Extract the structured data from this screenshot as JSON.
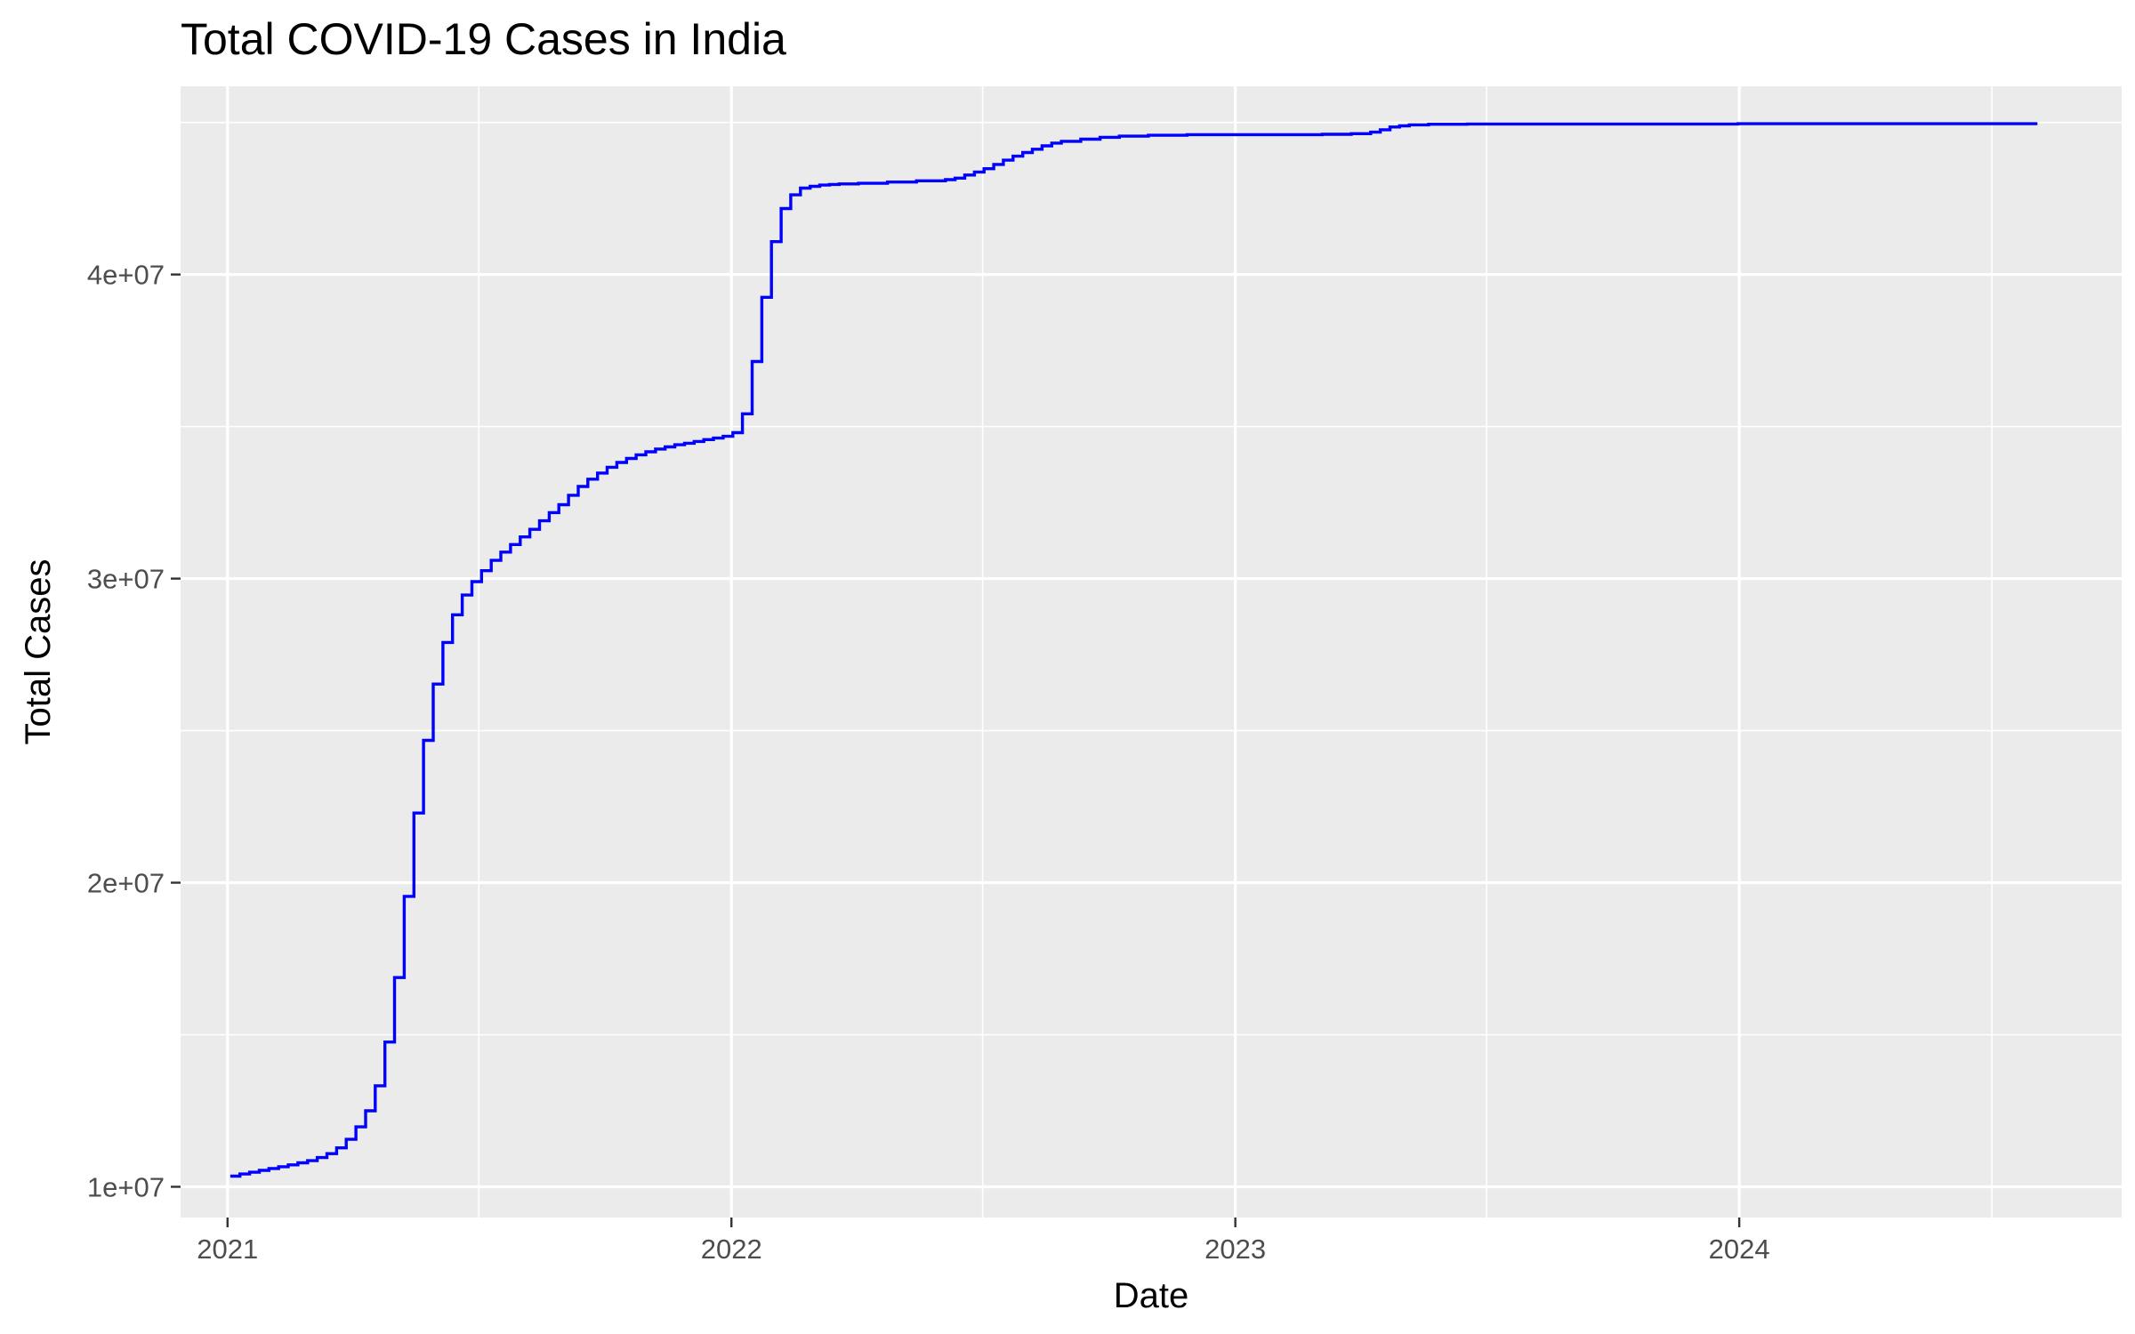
{
  "chart_data": {
    "type": "line",
    "title": "Total COVID-19 Cases in India",
    "xlabel": "Date",
    "ylabel": "Total Cases",
    "xlim": [
      "2020-11-28",
      "2024-10-04"
    ],
    "ylim": [
      8990000,
      46190000
    ],
    "x_ticks": [
      {
        "date": "2021-01-01",
        "label": "2021"
      },
      {
        "date": "2022-01-01",
        "label": "2022"
      },
      {
        "date": "2023-01-01",
        "label": "2023"
      },
      {
        "date": "2024-01-01",
        "label": "2024"
      }
    ],
    "x_minor_ticks": [
      "2021-07-02",
      "2022-07-02",
      "2023-07-02",
      "2024-07-02"
    ],
    "y_ticks": [
      {
        "value": 10000000,
        "label": "1e+07"
      },
      {
        "value": 20000000,
        "label": "2e+07"
      },
      {
        "value": 30000000,
        "label": "3e+07"
      },
      {
        "value": 40000000,
        "label": "4e+07"
      }
    ],
    "y_minor_ticks": [
      15000000,
      25000000,
      35000000,
      45000000
    ],
    "grid": true,
    "panel_background": "#ebebeb",
    "series": [
      {
        "name": "",
        "color": "#0000ff",
        "step": true,
        "x": [
          "2021-01-03",
          "2021-01-10",
          "2021-01-17",
          "2021-01-24",
          "2021-01-31",
          "2021-02-07",
          "2021-02-14",
          "2021-02-21",
          "2021-02-28",
          "2021-03-07",
          "2021-03-14",
          "2021-03-21",
          "2021-03-28",
          "2021-04-04",
          "2021-04-11",
          "2021-04-18",
          "2021-04-25",
          "2021-05-02",
          "2021-05-09",
          "2021-05-16",
          "2021-05-23",
          "2021-05-30",
          "2021-06-06",
          "2021-06-13",
          "2021-06-20",
          "2021-06-27",
          "2021-07-04",
          "2021-07-11",
          "2021-07-18",
          "2021-07-25",
          "2021-08-01",
          "2021-08-08",
          "2021-08-15",
          "2021-08-22",
          "2021-08-29",
          "2021-09-05",
          "2021-09-12",
          "2021-09-19",
          "2021-09-26",
          "2021-10-03",
          "2021-10-10",
          "2021-10-17",
          "2021-10-24",
          "2021-10-31",
          "2021-11-07",
          "2021-11-14",
          "2021-11-21",
          "2021-11-28",
          "2021-12-05",
          "2021-12-12",
          "2021-12-19",
          "2021-12-26",
          "2022-01-02",
          "2022-01-09",
          "2022-01-16",
          "2022-01-23",
          "2022-01-30",
          "2022-02-06",
          "2022-02-13",
          "2022-02-20",
          "2022-02-27",
          "2022-03-06",
          "2022-03-13",
          "2022-03-20",
          "2022-04-03",
          "2022-04-24",
          "2022-05-15",
          "2022-06-05",
          "2022-06-12",
          "2022-06-19",
          "2022-06-26",
          "2022-07-03",
          "2022-07-10",
          "2022-07-17",
          "2022-07-24",
          "2022-07-31",
          "2022-08-07",
          "2022-08-14",
          "2022-08-21",
          "2022-08-28",
          "2022-09-11",
          "2022-09-25",
          "2022-10-09",
          "2022-10-30",
          "2022-11-27",
          "2023-01-01",
          "2023-03-05",
          "2023-03-26",
          "2023-04-09",
          "2023-04-16",
          "2023-04-23",
          "2023-04-30",
          "2023-05-07",
          "2023-05-21",
          "2023-06-18",
          "2023-08-06",
          "2023-12-31",
          "2024-08-04"
        ],
        "y": [
          10350000,
          10420000,
          10480000,
          10540000,
          10600000,
          10660000,
          10720000,
          10790000,
          10860000,
          10960000,
          11090000,
          11280000,
          11560000,
          11970000,
          12500000,
          13320000,
          14760000,
          16880000,
          19550000,
          22290000,
          24680000,
          26530000,
          27900000,
          28810000,
          29460000,
          29900000,
          30260000,
          30600000,
          30870000,
          31120000,
          31370000,
          31620000,
          31900000,
          32170000,
          32430000,
          32740000,
          33030000,
          33270000,
          33470000,
          33660000,
          33820000,
          33950000,
          34070000,
          34170000,
          34260000,
          34330000,
          34400000,
          34450000,
          34510000,
          34570000,
          34620000,
          34680000,
          34800000,
          35420000,
          37140000,
          39250000,
          41080000,
          42170000,
          42620000,
          42840000,
          42900000,
          42940000,
          42960000,
          42980000,
          43000000,
          43040000,
          43080000,
          43120000,
          43170000,
          43270000,
          43370000,
          43480000,
          43620000,
          43760000,
          43890000,
          44010000,
          44120000,
          44230000,
          44320000,
          44380000,
          44450000,
          44510000,
          44550000,
          44580000,
          44600000,
          44600000,
          44610000,
          44630000,
          44680000,
          44760000,
          44850000,
          44890000,
          44920000,
          44940000,
          44950000,
          44950000,
          44960000,
          44960000
        ]
      }
    ]
  }
}
